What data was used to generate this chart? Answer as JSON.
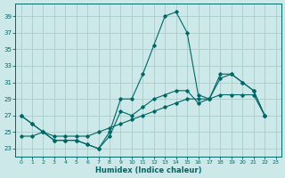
{
  "xlabel": "Humidex (Indice chaleur)",
  "background_color": "#cce8e8",
  "grid_color": "#aacccc",
  "line_color": "#006666",
  "xlim": [
    -0.5,
    23.5
  ],
  "ylim": [
    22,
    40.5
  ],
  "yticks": [
    23,
    25,
    27,
    29,
    31,
    33,
    35,
    37,
    39
  ],
  "xticks": [
    0,
    1,
    2,
    3,
    4,
    5,
    6,
    7,
    8,
    9,
    10,
    11,
    12,
    13,
    14,
    15,
    16,
    17,
    18,
    19,
    20,
    21,
    22,
    23
  ],
  "series": [
    {
      "x": [
        0,
        1,
        2,
        3,
        4,
        5,
        6,
        7,
        8,
        9,
        10,
        11,
        12,
        13,
        14,
        15,
        16,
        17,
        18,
        19,
        20,
        21,
        22
      ],
      "y": [
        27,
        26,
        25,
        24,
        24,
        24,
        23.5,
        23,
        25,
        29,
        29,
        32,
        35.5,
        39,
        39.5,
        37,
        29.5,
        29,
        32,
        32,
        31,
        30,
        27
      ]
    },
    {
      "x": [
        0,
        1,
        2,
        3,
        4,
        5,
        6,
        7,
        8,
        9,
        10,
        11,
        12,
        13,
        14,
        15,
        16,
        17,
        18,
        19,
        20,
        21,
        22
      ],
      "y": [
        27,
        26,
        25,
        24,
        24,
        24,
        23.5,
        23,
        24.5,
        27.5,
        27,
        28,
        29,
        29.5,
        30,
        30,
        28.5,
        29,
        31.5,
        32,
        31,
        30,
        27
      ]
    },
    {
      "x": [
        0,
        1,
        2,
        3,
        4,
        5,
        6,
        7,
        8,
        9,
        10,
        11,
        12,
        13,
        14,
        15,
        16,
        17,
        18,
        19,
        20,
        21,
        22
      ],
      "y": [
        24.5,
        24.5,
        25,
        24.5,
        24.5,
        24.5,
        24.5,
        25,
        25.5,
        26,
        26.5,
        27,
        27.5,
        28,
        28.5,
        29,
        29,
        29,
        29.5,
        29.5,
        29.5,
        29.5,
        27
      ]
    }
  ]
}
